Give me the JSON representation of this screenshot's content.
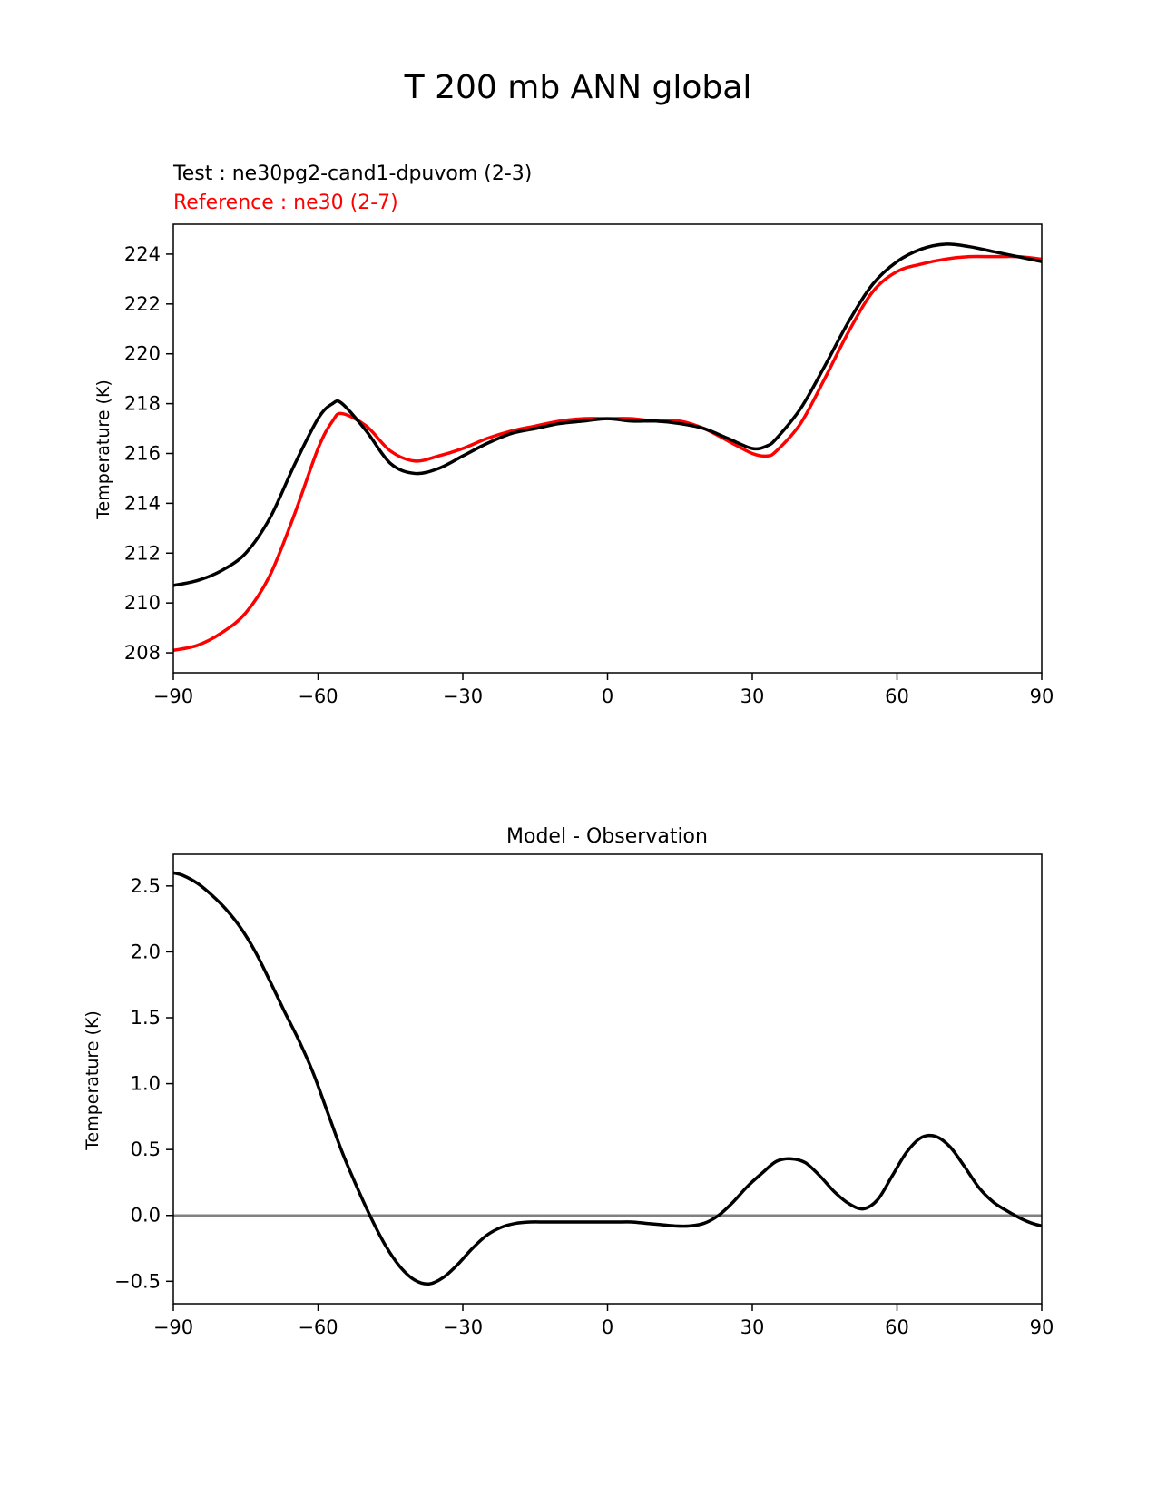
{
  "figure_title": "T 200 mb ANN global",
  "colors": {
    "test": "#000000",
    "reference": "#ff0000",
    "zero_line": "#808080",
    "axes": "#000000"
  },
  "chart_data": [
    {
      "type": "line",
      "title": "",
      "legend_text": [
        {
          "text": "Test : ne30pg2-cand1-dpuvom (2-3)",
          "color": "#000000"
        },
        {
          "text": "Reference : ne30 (2-7)",
          "color": "#ff0000"
        }
      ],
      "xlabel": "",
      "ylabel": "Temperature (K)",
      "xlim": [
        -90,
        90
      ],
      "ylim": [
        207.2,
        225.2
      ],
      "xticks": [
        -90,
        -60,
        -30,
        0,
        30,
        60,
        90
      ],
      "xtick_labels": [
        "−90",
        "−60",
        "−30",
        "0",
        "30",
        "60",
        "90"
      ],
      "yticks": [
        208,
        210,
        212,
        214,
        216,
        218,
        220,
        222,
        224
      ],
      "ytick_labels": [
        "208",
        "210",
        "212",
        "214",
        "216",
        "218",
        "220",
        "222",
        "224"
      ],
      "x": [
        -90,
        -85,
        -80,
        -75,
        -70,
        -65,
        -60,
        -57,
        -55,
        -50,
        -45,
        -40,
        -35,
        -30,
        -25,
        -20,
        -15,
        -10,
        -5,
        0,
        5,
        10,
        15,
        20,
        25,
        30,
        33,
        35,
        40,
        45,
        50,
        55,
        60,
        65,
        70,
        75,
        80,
        85,
        90
      ],
      "series": [
        {
          "name": "Test : ne30pg2-cand1-dpuvom (2-3)",
          "color": "#000000",
          "values": [
            210.7,
            210.9,
            211.3,
            212.0,
            213.4,
            215.5,
            217.4,
            218.0,
            218.0,
            216.9,
            215.6,
            215.2,
            215.4,
            215.9,
            216.4,
            216.8,
            217.0,
            217.2,
            217.3,
            217.4,
            217.3,
            217.3,
            217.2,
            217.0,
            216.6,
            216.2,
            216.3,
            216.6,
            217.8,
            219.5,
            221.3,
            222.8,
            223.7,
            224.2,
            224.4,
            224.3,
            224.1,
            223.9,
            223.7
          ]
        },
        {
          "name": "Reference : ne30 (2-7)",
          "color": "#ff0000",
          "values": [
            208.1,
            208.3,
            208.8,
            209.6,
            211.1,
            213.5,
            216.2,
            217.3,
            217.6,
            217.1,
            216.1,
            215.7,
            215.9,
            216.2,
            216.6,
            216.9,
            217.1,
            217.3,
            217.4,
            217.4,
            217.4,
            217.3,
            217.3,
            217.0,
            216.5,
            216.0,
            215.9,
            216.1,
            217.2,
            219.0,
            220.9,
            222.5,
            223.3,
            223.6,
            223.8,
            223.9,
            223.9,
            223.9,
            223.8
          ]
        }
      ]
    },
    {
      "type": "line",
      "title": "Model - Observation",
      "xlabel": "",
      "ylabel": "Temperature (K)",
      "xlim": [
        -90,
        90
      ],
      "ylim": [
        -0.67,
        2.74
      ],
      "xticks": [
        -90,
        -60,
        -30,
        0,
        30,
        60,
        90
      ],
      "xtick_labels": [
        "−90",
        "−60",
        "−30",
        "0",
        "30",
        "60",
        "90"
      ],
      "yticks": [
        -0.5,
        0.0,
        0.5,
        1.0,
        1.5,
        2.0,
        2.5
      ],
      "ytick_labels": [
        "−0.5",
        "0.0",
        "0.5",
        "1.0",
        "1.5",
        "2.0",
        "2.5"
      ],
      "reference_line": 0,
      "x": [
        -90,
        -88,
        -85,
        -82,
        -79,
        -76,
        -73,
        -70,
        -67,
        -64,
        -61,
        -58,
        -55,
        -52,
        -49,
        -46,
        -43,
        -40,
        -37,
        -34,
        -31,
        -28,
        -25,
        -22,
        -19,
        -16,
        -13,
        -10,
        -7,
        -4,
        -1,
        2,
        5,
        8,
        11,
        14,
        17,
        20,
        23,
        26,
        29,
        32,
        35,
        38,
        41,
        44,
        47,
        50,
        53,
        56,
        59,
        62,
        65,
        68,
        71,
        74,
        77,
        80,
        83,
        86,
        88,
        90
      ],
      "series": [
        {
          "name": "Model - Observation",
          "color": "#000000",
          "values": [
            2.6,
            2.58,
            2.52,
            2.43,
            2.32,
            2.18,
            2.0,
            1.78,
            1.55,
            1.33,
            1.08,
            0.78,
            0.48,
            0.22,
            -0.02,
            -0.23,
            -0.39,
            -0.49,
            -0.52,
            -0.47,
            -0.37,
            -0.25,
            -0.15,
            -0.09,
            -0.06,
            -0.05,
            -0.05,
            -0.05,
            -0.05,
            -0.05,
            -0.05,
            -0.05,
            -0.05,
            -0.06,
            -0.07,
            -0.08,
            -0.08,
            -0.06,
            0.0,
            0.1,
            0.22,
            0.32,
            0.41,
            0.43,
            0.4,
            0.3,
            0.18,
            0.09,
            0.05,
            0.12,
            0.3,
            0.48,
            0.59,
            0.6,
            0.52,
            0.37,
            0.21,
            0.1,
            0.03,
            -0.03,
            -0.06,
            -0.08
          ]
        }
      ]
    }
  ]
}
